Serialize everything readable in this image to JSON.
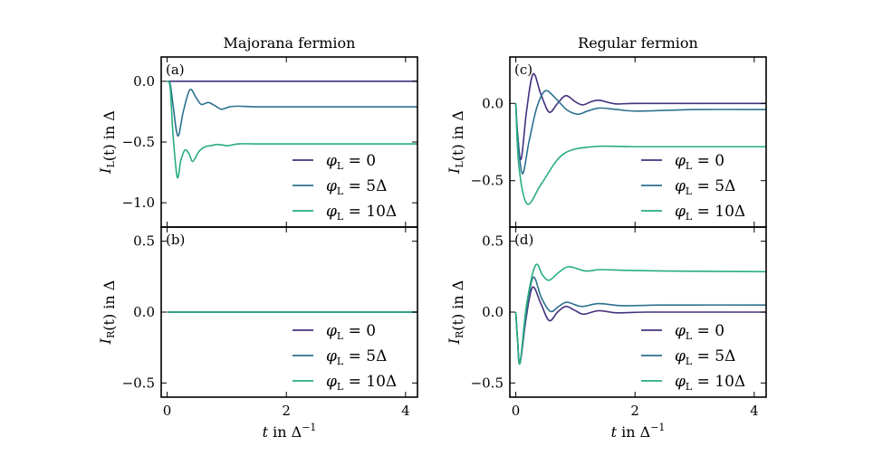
{
  "colors": {
    "phi0": "#46317e",
    "phi5": "#2c718e",
    "phi10": "#27ad81",
    "axes": "#000000"
  },
  "legend": [
    {
      "key": "phi0",
      "sym": "φ",
      "sub": "L",
      "rest": " = 0"
    },
    {
      "key": "phi5",
      "sym": "φ",
      "sub": "L",
      "rest": " = 5Δ"
    },
    {
      "key": "phi10",
      "sym": "φ",
      "sub": "L",
      "rest": " = 10Δ"
    }
  ],
  "chart_data": [
    {
      "type": "line",
      "id": "a",
      "panel_label": "(a)",
      "title": "Majorana fermion",
      "xlabel": "",
      "ylabel": {
        "main": "I",
        "sub": "L",
        "rest": "(t) in Δ"
      },
      "xlim": [
        -0.1,
        4.2
      ],
      "ylim": [
        -1.2,
        0.2
      ],
      "xticks": [
        0,
        2,
        4
      ],
      "xtick_labels": [],
      "yticks": [
        0.0,
        -0.5,
        -1.0
      ],
      "ytick_labels": [
        "0.0",
        "−0.5",
        "−1.0"
      ],
      "legend_position": "lower-right",
      "grid": false,
      "series": [
        {
          "name": "φL = 0",
          "key": "phi0",
          "x": [
            0,
            4.2
          ],
          "y": [
            0,
            0
          ]
        },
        {
          "name": "φL = 5Δ",
          "key": "phi5",
          "x": [
            0,
            0.05,
            0.1,
            0.18,
            0.27,
            0.38,
            0.48,
            0.57,
            0.69,
            0.8,
            0.91,
            1.05,
            1.2,
            1.5,
            2,
            3,
            4.2
          ],
          "y": [
            0,
            -0.02,
            -0.2,
            -0.45,
            -0.25,
            -0.07,
            -0.13,
            -0.19,
            -0.175,
            -0.2,
            -0.23,
            -0.21,
            -0.205,
            -0.21,
            -0.21,
            -0.21,
            -0.21
          ]
        },
        {
          "name": "φL = 10Δ",
          "key": "phi10",
          "x": [
            0,
            0.05,
            0.1,
            0.17,
            0.23,
            0.3,
            0.37,
            0.43,
            0.53,
            0.63,
            0.73,
            0.84,
            0.93,
            1.02,
            1.2,
            1.5,
            2,
            3,
            4.2
          ],
          "y": [
            0,
            -0.05,
            -0.45,
            -0.79,
            -0.65,
            -0.565,
            -0.6,
            -0.66,
            -0.58,
            -0.54,
            -0.53,
            -0.52,
            -0.525,
            -0.53,
            -0.515,
            -0.515,
            -0.515,
            -0.515,
            -0.515
          ]
        }
      ]
    },
    {
      "type": "line",
      "id": "b",
      "panel_label": "(b)",
      "title": "",
      "xlabel": {
        "main": "t",
        "rest": " in Δ",
        "sup": "−1"
      },
      "ylabel": {
        "main": "I",
        "sub": "R",
        "rest": "(t) in Δ"
      },
      "xlim": [
        -0.1,
        4.2
      ],
      "ylim": [
        -0.6,
        0.6
      ],
      "xticks": [
        0,
        2,
        4
      ],
      "xtick_labels": [
        "0",
        "2",
        "4"
      ],
      "yticks": [
        0.5,
        0.0,
        -0.5
      ],
      "ytick_labels": [
        "0.5",
        "0.0",
        "−0.5"
      ],
      "legend_position": "lower-right",
      "grid": false,
      "series": [
        {
          "name": "φL = 0",
          "key": "phi0",
          "x": [
            0,
            4.2
          ],
          "y": [
            0,
            0
          ]
        },
        {
          "name": "φL = 5Δ",
          "key": "phi5",
          "x": [
            0,
            4.2
          ],
          "y": [
            0,
            0
          ]
        },
        {
          "name": "φL = 10Δ",
          "key": "phi10",
          "x": [
            0,
            4.2
          ],
          "y": [
            0,
            0
          ]
        }
      ]
    },
    {
      "type": "line",
      "id": "c",
      "panel_label": "(c)",
      "title": "Regular fermion",
      "xlabel": "",
      "ylabel": {
        "main": "I",
        "sub": "L",
        "rest": "(t) in Δ"
      },
      "xlim": [
        -0.1,
        4.2
      ],
      "ylim": [
        -0.8,
        0.3
      ],
      "xticks": [
        0,
        2,
        4
      ],
      "xtick_labels": [],
      "yticks": [
        0.0,
        -0.5
      ],
      "ytick_labels": [
        "0.0",
        "−0.5"
      ],
      "legend_position": "lower-right",
      "grid": false,
      "series": [
        {
          "name": "φL = 0",
          "key": "phi0",
          "x": [
            0,
            0.03,
            0.09,
            0.18,
            0.29,
            0.42,
            0.56,
            0.7,
            0.84,
            1.0,
            1.12,
            1.26,
            1.4,
            1.67,
            2,
            3,
            4.2
          ],
          "y": [
            0,
            -0.2,
            -0.36,
            -0.05,
            0.19,
            0.06,
            -0.057,
            0.0,
            0.05,
            0.01,
            -0.01,
            0.01,
            0.02,
            -0.003,
            0,
            0,
            0
          ]
        },
        {
          "name": "φL = 5Δ",
          "key": "phi5",
          "x": [
            0,
            0.03,
            0.11,
            0.22,
            0.35,
            0.49,
            0.65,
            0.85,
            1.04,
            1.2,
            1.4,
            1.7,
            2.05,
            3,
            4.2
          ],
          "y": [
            0,
            -0.2,
            -0.455,
            -0.25,
            -0.03,
            0.08,
            0.04,
            -0.04,
            -0.07,
            -0.05,
            -0.03,
            -0.04,
            -0.05,
            -0.04,
            -0.04
          ]
        },
        {
          "name": "φL = 10Δ",
          "key": "phi10",
          "x": [
            0,
            0.05,
            0.19,
            0.43,
            0.79,
            1.29,
            2,
            3,
            4.2
          ],
          "y": [
            0,
            -0.4,
            -0.65,
            -0.52,
            -0.33,
            -0.28,
            -0.28,
            -0.28,
            -0.28
          ]
        }
      ]
    },
    {
      "type": "line",
      "id": "d",
      "panel_label": "(d)",
      "title": "",
      "xlabel": {
        "main": "t",
        "rest": " in Δ",
        "sup": "−1"
      },
      "ylabel": {
        "main": "I",
        "sub": "R",
        "rest": "(t) in Δ"
      },
      "xlim": [
        -0.1,
        4.2
      ],
      "ylim": [
        -0.6,
        0.6
      ],
      "xticks": [
        0,
        2,
        4
      ],
      "xtick_labels": [
        "0",
        "2",
        "4"
      ],
      "yticks": [
        0.5,
        0.0,
        -0.5
      ],
      "ytick_labels": [
        "0.5",
        "0.0",
        "−0.5"
      ],
      "legend_position": "lower-right",
      "grid": false,
      "series": [
        {
          "name": "φL = 0",
          "key": "phi0",
          "x": [
            0,
            0.03,
            0.07,
            0.17,
            0.28,
            0.42,
            0.56,
            0.7,
            0.84,
            1.0,
            1.14,
            1.39,
            1.7,
            2.2,
            3,
            4.2
          ],
          "y": [
            0,
            -0.2,
            -0.36,
            -0.05,
            0.175,
            0.06,
            -0.06,
            0.0,
            0.04,
            0.01,
            -0.015,
            0.01,
            -0.005,
            0,
            0,
            0
          ]
        },
        {
          "name": "φL = 5Δ",
          "key": "phi5",
          "x": [
            0,
            0.03,
            0.07,
            0.17,
            0.29,
            0.43,
            0.58,
            0.72,
            0.86,
            1.1,
            1.39,
            1.8,
            2.5,
            4.2
          ],
          "y": [
            0,
            -0.2,
            -0.36,
            -0.02,
            0.245,
            0.1,
            0.005,
            0.04,
            0.07,
            0.04,
            0.06,
            0.045,
            0.05,
            0.05
          ]
        },
        {
          "name": "φL = 10Δ",
          "key": "phi10",
          "x": [
            0,
            0.03,
            0.07,
            0.18,
            0.33,
            0.45,
            0.56,
            0.72,
            0.89,
            1.17,
            1.42,
            1.8,
            2.5,
            3.5,
            4.2
          ],
          "y": [
            0,
            -0.2,
            -0.36,
            0.05,
            0.33,
            0.26,
            0.225,
            0.28,
            0.32,
            0.29,
            0.3,
            0.295,
            0.29,
            0.287,
            0.285
          ]
        }
      ]
    }
  ]
}
